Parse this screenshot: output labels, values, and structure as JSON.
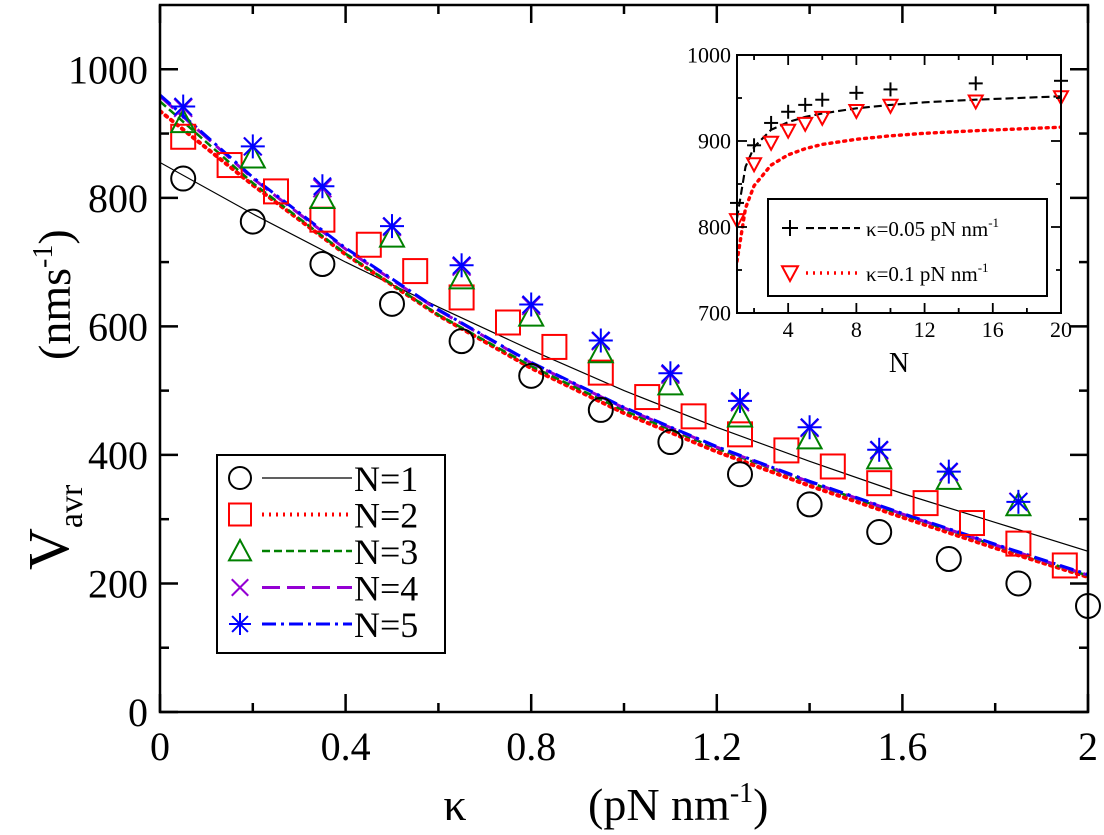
{
  "chart_data": [
    {
      "type": "scatter",
      "panel": "main",
      "xlabel": "κ",
      "xlabel_unit": "(pN nm",
      "xlabel_unit_sup": "-1",
      "xlabel_unit_close": ")",
      "ylabel_main": "V",
      "ylabel_sub": "avr",
      "ylabel_unit": "(nms",
      "ylabel_unit_sup": "-1",
      "ylabel_unit_close": ")",
      "xlim": [
        0,
        2
      ],
      "ylim": [
        0,
        1100
      ],
      "xticks": [
        0,
        0.4,
        0.8,
        1.2,
        1.6,
        2
      ],
      "xtick_labels": [
        "0",
        "0.4",
        "0.8",
        "1.2",
        "1.6",
        "2"
      ],
      "yticks": [
        0,
        200,
        400,
        600,
        800,
        1000
      ],
      "ytick_labels": [
        "0",
        "200",
        "400",
        "600",
        "800",
        "1000"
      ],
      "legend_position": "bottom-left",
      "series": [
        {
          "name": "N=1",
          "marker": "circle",
          "color": "#000000",
          "line_style": "solid",
          "points": [
            [
              0.05,
              830
            ],
            [
              0.2,
              763
            ],
            [
              0.35,
              697
            ],
            [
              0.5,
              635
            ],
            [
              0.65,
              577
            ],
            [
              0.8,
              523
            ],
            [
              0.95,
              470
            ],
            [
              1.1,
              420
            ],
            [
              1.25,
              370
            ],
            [
              1.4,
              323
            ],
            [
              1.55,
              280
            ],
            [
              1.7,
              238
            ],
            [
              1.85,
              200
            ],
            [
              2.0,
              165
            ]
          ],
          "curve": [
            [
              0,
              855
            ],
            [
              0.2,
              775
            ],
            [
              0.4,
              700
            ],
            [
              0.6,
              630
            ],
            [
              0.8,
              563
            ],
            [
              1.0,
              500
            ],
            [
              1.2,
              443
            ],
            [
              1.4,
              390
            ],
            [
              1.6,
              340
            ],
            [
              1.8,
              295
            ],
            [
              2.0,
              250
            ]
          ]
        },
        {
          "name": "N=2",
          "marker": "square",
          "color": "#ff0000",
          "line_style": "dotted",
          "points": [
            [
              0.05,
              895
            ],
            [
              0.15,
              851
            ],
            [
              0.25,
              810
            ],
            [
              0.35,
              766
            ],
            [
              0.45,
              727
            ],
            [
              0.55,
              686
            ],
            [
              0.65,
              645
            ],
            [
              0.75,
              606
            ],
            [
              0.85,
              568
            ],
            [
              0.95,
              528
            ],
            [
              1.05,
              490
            ],
            [
              1.15,
              460
            ],
            [
              1.25,
              432
            ],
            [
              1.35,
              407
            ],
            [
              1.45,
              382
            ],
            [
              1.55,
              356
            ],
            [
              1.65,
              325
            ],
            [
              1.75,
              294
            ],
            [
              1.85,
              262
            ],
            [
              1.95,
              228
            ]
          ],
          "curve": [
            [
              0,
              935
            ],
            [
              0.2,
              820
            ],
            [
              0.4,
              712
            ],
            [
              0.6,
              617
            ],
            [
              0.8,
              535
            ],
            [
              1.0,
              465
            ],
            [
              1.2,
              405
            ],
            [
              1.4,
              352
            ],
            [
              1.6,
              303
            ],
            [
              1.8,
              255
            ],
            [
              2.0,
              210
            ]
          ]
        },
        {
          "name": "N=3",
          "marker": "triangle",
          "color": "#008000",
          "line_style": "dashed",
          "points": [
            [
              0.05,
              918
            ],
            [
              0.2,
              863
            ],
            [
              0.35,
              800
            ],
            [
              0.5,
              740
            ],
            [
              0.65,
              675
            ],
            [
              0.8,
              617
            ],
            [
              0.95,
              560
            ],
            [
              1.1,
              510
            ],
            [
              1.25,
              460
            ],
            [
              1.4,
              426
            ],
            [
              1.55,
              395
            ],
            [
              1.7,
              363
            ],
            [
              1.85,
              322
            ]
          ],
          "curve": [
            [
              0,
              950
            ],
            [
              0.2,
              823
            ],
            [
              0.4,
              713
            ],
            [
              0.6,
              618
            ],
            [
              0.8,
              538
            ],
            [
              1.0,
              469
            ],
            [
              1.2,
              410
            ],
            [
              1.4,
              357
            ],
            [
              1.6,
              307
            ],
            [
              1.8,
              259
            ],
            [
              2.0,
              212
            ]
          ]
        },
        {
          "name": "N=4",
          "marker": "x",
          "color": "#9400d3",
          "line_style": "longdash",
          "points": [
            [
              0.05,
              940
            ],
            [
              0.2,
              880
            ],
            [
              0.35,
              815
            ],
            [
              0.5,
              755
            ],
            [
              0.65,
              693
            ],
            [
              0.8,
              632
            ],
            [
              0.95,
              577
            ],
            [
              1.1,
              525
            ],
            [
              1.25,
              482
            ],
            [
              1.4,
              442
            ],
            [
              1.55,
              407
            ],
            [
              1.7,
              373
            ],
            [
              1.85,
              327
            ]
          ],
          "curve": [
            [
              0,
              958
            ],
            [
              0.2,
              830
            ],
            [
              0.4,
              720
            ],
            [
              0.6,
              625
            ],
            [
              0.8,
              543
            ],
            [
              1.0,
              473
            ],
            [
              1.2,
              412
            ],
            [
              1.4,
              358
            ],
            [
              1.6,
              308
            ],
            [
              1.8,
              260
            ],
            [
              2.0,
              213
            ]
          ]
        },
        {
          "name": "N=5",
          "marker": "star",
          "color": "#0000ff",
          "line_style": "dashdot",
          "points": [
            [
              0.05,
              942
            ],
            [
              0.2,
              880
            ],
            [
              0.35,
              818
            ],
            [
              0.5,
              756
            ],
            [
              0.65,
              695
            ],
            [
              0.8,
              634
            ],
            [
              0.95,
              578
            ],
            [
              1.1,
              527
            ],
            [
              1.25,
              484
            ],
            [
              1.4,
              443
            ],
            [
              1.55,
              408
            ],
            [
              1.7,
              374
            ],
            [
              1.85,
              327
            ]
          ],
          "curve": [
            [
              0,
              960
            ],
            [
              0.2,
              832
            ],
            [
              0.4,
              722
            ],
            [
              0.6,
              626
            ],
            [
              0.8,
              544
            ],
            [
              1.0,
              474
            ],
            [
              1.2,
              413
            ],
            [
              1.4,
              359
            ],
            [
              1.6,
              309
            ],
            [
              1.8,
              261
            ],
            [
              2.0,
              214
            ]
          ]
        }
      ]
    },
    {
      "type": "scatter",
      "panel": "inset",
      "xlabel": "N",
      "xlim": [
        1,
        20
      ],
      "ylim": [
        700,
        1000
      ],
      "xticks": [
        4,
        8,
        12,
        16,
        20
      ],
      "xtick_labels": [
        "4",
        "8",
        "12",
        "16",
        "20"
      ],
      "yticks": [
        700,
        800,
        900,
        1000
      ],
      "ytick_labels": [
        "700",
        "800",
        "900",
        "1000"
      ],
      "legend_position": "center-right",
      "series": [
        {
          "name": "κ=0.05 pN nm",
          "name_sup": "-1",
          "marker": "plus",
          "color": "#000000",
          "line_style": "dashed",
          "points": [
            [
              1,
              828
            ],
            [
              2,
              895
            ],
            [
              3,
              921
            ],
            [
              4,
              934
            ],
            [
              5,
              942
            ],
            [
              6,
              948
            ],
            [
              8,
              956
            ],
            [
              10,
              960
            ],
            [
              15,
              967
            ],
            [
              20,
              970
            ]
          ],
          "curve": [
            [
              1,
              810
            ],
            [
              1.5,
              870
            ],
            [
              2,
              893
            ],
            [
              3,
              913
            ],
            [
              4,
              922
            ],
            [
              5,
              928
            ],
            [
              6,
              932
            ],
            [
              8,
              938
            ],
            [
              10,
              942
            ],
            [
              12,
              945
            ],
            [
              15,
              948
            ],
            [
              20,
              952
            ]
          ]
        },
        {
          "name": "κ=0.1 pN nm",
          "name_sup": "-1",
          "marker": "triangle-down",
          "color": "#ff0000",
          "line_style": "dotted",
          "points": [
            [
              1,
              808
            ],
            [
              2,
              873
            ],
            [
              3,
              898
            ],
            [
              4,
              912
            ],
            [
              5,
              920
            ],
            [
              6,
              927
            ],
            [
              8,
              935
            ],
            [
              10,
              941
            ],
            [
              15,
              946
            ],
            [
              20,
              951
            ]
          ],
          "curve": [
            [
              1,
              760
            ],
            [
              1.5,
              822
            ],
            [
              2,
              848
            ],
            [
              3,
              872
            ],
            [
              4,
              884
            ],
            [
              5,
              891
            ],
            [
              6,
              896
            ],
            [
              8,
              902
            ],
            [
              10,
              906
            ],
            [
              12,
              909
            ],
            [
              15,
              912
            ],
            [
              20,
              916
            ]
          ]
        }
      ]
    }
  ]
}
